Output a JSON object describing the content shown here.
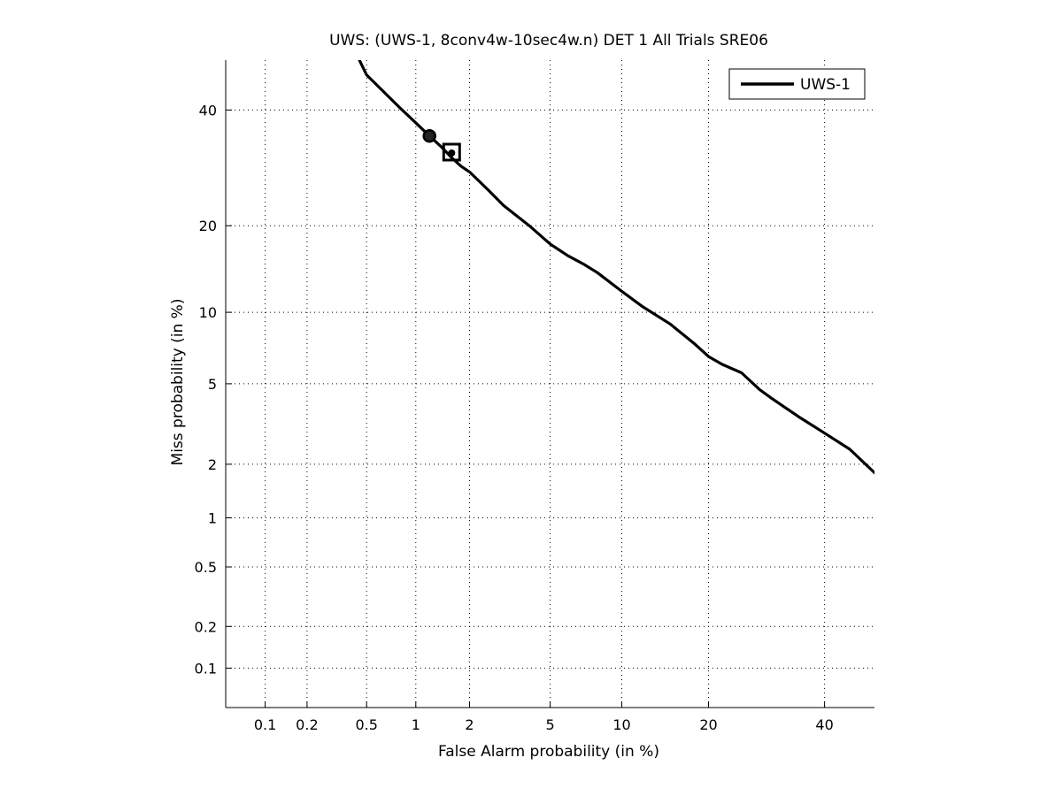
{
  "chart_data": {
    "type": "line",
    "title": "UWS: (UWS-1, 8conv4w-10sec4w.n) DET 1 All Trials SRE06",
    "xlabel": "False Alarm probability (in %)",
    "ylabel": "Miss probability (in %)",
    "x_scale": "probit",
    "y_scale": "probit",
    "xlim": [
      0.05,
      50
    ],
    "ylim": [
      0.05,
      50
    ],
    "grid": true,
    "legend_location": "top-right",
    "x_ticks": [
      0.1,
      0.2,
      0.5,
      1,
      2,
      5,
      10,
      20,
      40
    ],
    "x_tick_labels": [
      "0.1",
      "0.2",
      "0.5",
      "1",
      "2",
      "5",
      "10",
      "20",
      "40"
    ],
    "y_ticks": [
      0.1,
      0.2,
      0.5,
      1,
      2,
      5,
      10,
      20,
      40
    ],
    "y_tick_labels": [
      "0.1",
      "0.2",
      "0.5",
      "1",
      "2",
      "5",
      "10",
      "20",
      "40"
    ],
    "series": [
      {
        "name": "UWS-1",
        "color": "#000000",
        "x": [
          0.45,
          0.5,
          0.6,
          0.8,
          1.0,
          1.2,
          1.4,
          1.6,
          1.8,
          2.0,
          2.5,
          3.0,
          4.0,
          5.0,
          6.0,
          7.0,
          8.0,
          10.0,
          12.0,
          15.0,
          18.0,
          20.0,
          22.0,
          25.0,
          28.0,
          30.0,
          35.0,
          40.0,
          45.0,
          50.0
        ],
        "y": [
          50.0,
          47.0,
          44.5,
          40.5,
          37.5,
          35.0,
          33.0,
          31.0,
          29.5,
          28.5,
          25.5,
          23.0,
          20.0,
          17.5,
          16.0,
          15.0,
          14.0,
          12.0,
          10.5,
          9.0,
          7.5,
          6.6,
          6.1,
          5.6,
          4.7,
          4.3,
          3.5,
          2.9,
          2.4,
          1.8
        ]
      }
    ],
    "markers": [
      {
        "shape": "circle",
        "x": 1.2,
        "y": 35.0
      },
      {
        "shape": "square",
        "x": 1.6,
        "y": 32.0
      }
    ]
  }
}
